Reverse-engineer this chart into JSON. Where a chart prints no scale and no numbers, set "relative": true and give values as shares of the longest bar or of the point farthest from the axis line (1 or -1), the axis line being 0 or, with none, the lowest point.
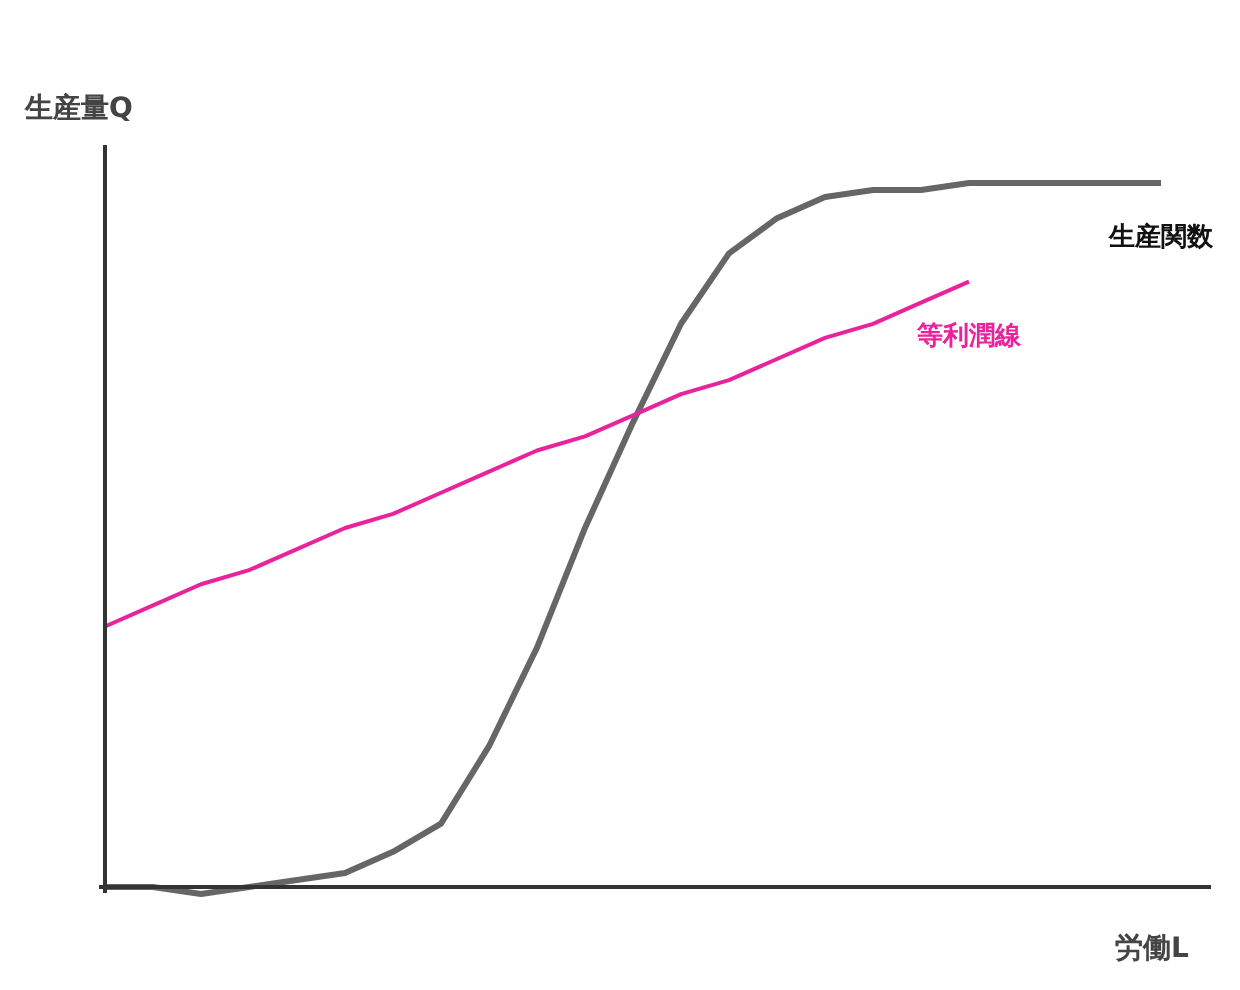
{
  "chart_data": {
    "type": "line",
    "relative": true,
    "xlabel": "労働L",
    "ylabel": "生産量Q",
    "categories": [
      null,
      null,
      null,
      null,
      null,
      null,
      null,
      null,
      null,
      null,
      null,
      null,
      null,
      null,
      null,
      null,
      null,
      null,
      null,
      null,
      null,
      null,
      null
    ],
    "series": [
      {
        "name": "生産関数",
        "color": "#666666",
        "values": [
          0,
          0,
          -0.01,
          0,
          0.01,
          0.02,
          0.05,
          0.09,
          0.2,
          0.34,
          0.51,
          0.66,
          0.8,
          0.9,
          0.95,
          0.98,
          0.99,
          0.99,
          1.0,
          1.0,
          1.0,
          1.0,
          1.0
        ]
      },
      {
        "name": "等利潤線",
        "color": "#e8239c",
        "values": [
          0.37,
          0.4,
          0.43,
          0.45,
          0.48,
          0.51,
          0.53,
          0.56,
          0.59,
          0.62,
          0.64,
          0.67,
          0.7,
          0.72,
          0.75,
          0.78,
          0.8,
          0.83,
          0.86,
          null,
          null,
          null,
          null
        ]
      }
    ]
  }
}
